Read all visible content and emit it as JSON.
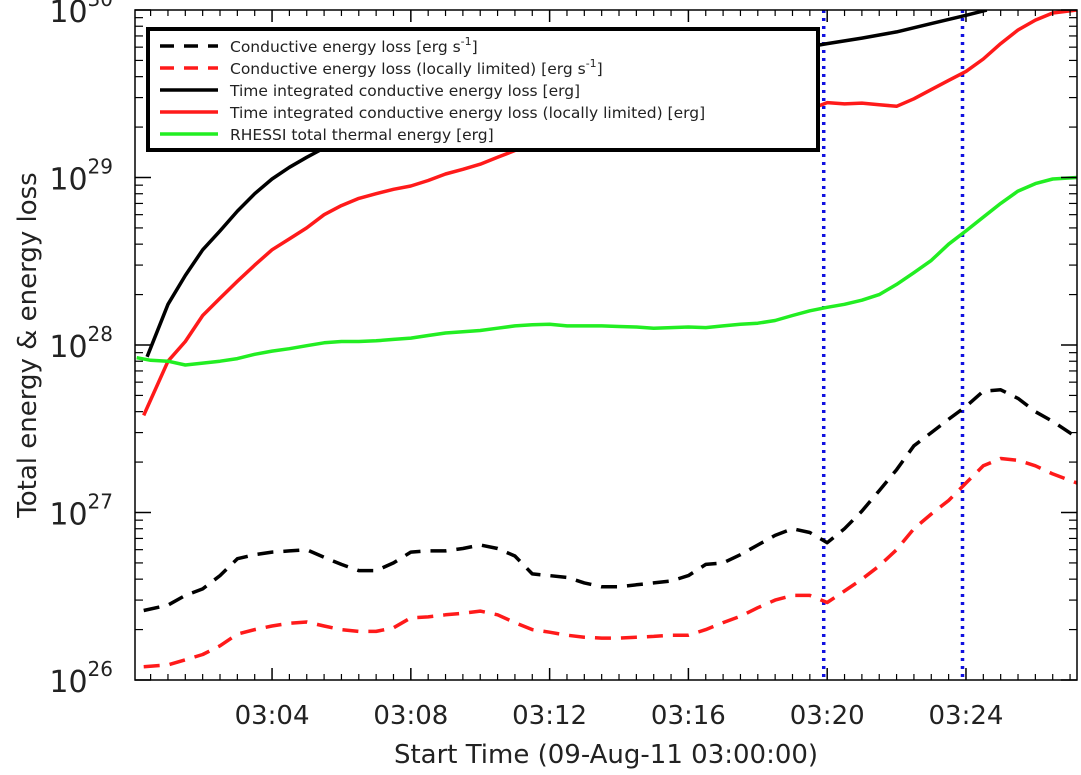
{
  "chart_data": {
    "type": "line",
    "xlabel": "Start Time (09-Aug-11 03:00:00)",
    "ylabel": "Total energy & energy loss",
    "yscale": "log",
    "xlim": [
      0.05,
      27.2
    ],
    "ylim": [
      1e+26,
      1e+30
    ],
    "x_ticks": [
      {
        "value": 4,
        "label": "03:04"
      },
      {
        "value": 8,
        "label": "03:08"
      },
      {
        "value": 12,
        "label": "03:12"
      },
      {
        "value": 16,
        "label": "03:16"
      },
      {
        "value": 20,
        "label": "03:20"
      },
      {
        "value": 24,
        "label": "03:24"
      }
    ],
    "y_ticks": [
      {
        "value": 1e+26,
        "base": "10",
        "exp": "26"
      },
      {
        "value": 1e+27,
        "base": "10",
        "exp": "27"
      },
      {
        "value": 1e+28,
        "base": "10",
        "exp": "28"
      },
      {
        "value": 1e+29,
        "base": "10",
        "exp": "29"
      },
      {
        "value": 1e+30,
        "base": "10",
        "exp": "30"
      }
    ],
    "legend_placement": "top-left",
    "vlines": [
      {
        "x": 19.9,
        "color": "#1010e0",
        "style": "dotted"
      },
      {
        "x": 23.9,
        "color": "#1010e0",
        "style": "dotted"
      }
    ],
    "series": [
      {
        "name": "Conductive energy loss [erg s",
        "name_sup": "-1",
        "name_suffix": "]",
        "color": "#000000",
        "style": "dashed",
        "x": [
          0.3,
          1.0,
          1.5,
          2.0,
          2.5,
          3.0,
          3.5,
          4.0,
          4.5,
          5.0,
          5.5,
          6.0,
          6.5,
          7.0,
          7.5,
          8.0,
          8.5,
          9.0,
          9.5,
          10.0,
          10.5,
          11.0,
          11.5,
          12.0,
          12.5,
          13.0,
          13.5,
          14.0,
          14.5,
          15.0,
          15.5,
          16.0,
          16.5,
          17.0,
          17.5,
          18.0,
          18.5,
          19.0,
          19.5,
          20.0,
          20.5,
          21.0,
          21.5,
          22.0,
          22.5,
          23.0,
          23.5,
          24.0,
          24.5,
          25.0,
          25.5,
          26.0,
          26.5,
          27.2
        ],
        "y": [
          2.6e+26,
          2.8e+26,
          3.2e+26,
          3.5e+26,
          4.2e+26,
          5.3e+26,
          5.6e+26,
          5.8e+26,
          5.9e+26,
          6e+26,
          5.4e+26,
          4.9e+26,
          4.5e+26,
          4.5e+26,
          5e+26,
          5.8e+26,
          5.9e+26,
          5.9e+26,
          6.1e+26,
          6.4e+26,
          6.1e+26,
          5.5e+26,
          4.3e+26,
          4.2e+26,
          4.1e+26,
          3.8e+26,
          3.6e+26,
          3.6e+26,
          3.7e+26,
          3.8e+26,
          3.9e+26,
          4.2e+26,
          4.9e+26,
          5e+26,
          5.6e+26,
          6.4e+26,
          7.3e+26,
          8e+26,
          7.6e+26,
          6.6e+26,
          8e+26,
          1.02e+27,
          1.35e+27,
          1.8e+27,
          2.5e+27,
          3e+27,
          3.6e+27,
          4.3e+27,
          5.3e+27,
          5.4e+27,
          4.8e+27,
          4e+27,
          3.5e+27,
          2.8e+27
        ]
      },
      {
        "name": "Conductive energy loss (locally limited) [erg s",
        "name_sup": "-1",
        "name_suffix": "]",
        "color": "#ff1a1a",
        "style": "dashed",
        "x": [
          0.3,
          1.0,
          1.5,
          2.0,
          2.5,
          3.0,
          3.5,
          4.0,
          4.5,
          5.0,
          5.5,
          6.0,
          6.5,
          7.0,
          7.5,
          8.0,
          8.5,
          9.0,
          9.5,
          10.0,
          10.5,
          11.0,
          11.5,
          12.0,
          12.5,
          13.0,
          13.5,
          14.0,
          14.5,
          15.0,
          15.5,
          16.0,
          16.5,
          17.0,
          17.5,
          18.0,
          18.5,
          19.0,
          19.5,
          20.0,
          20.5,
          21.0,
          21.5,
          22.0,
          22.5,
          23.0,
          23.5,
          24.0,
          24.5,
          25.0,
          25.5,
          26.0,
          26.5,
          27.2
        ],
        "y": [
          1.2e+26,
          1.23e+26,
          1.32e+26,
          1.42e+26,
          1.6e+26,
          1.88e+26,
          2e+26,
          2.1e+26,
          2.18e+26,
          2.22e+26,
          2.1e+26,
          2e+26,
          1.95e+26,
          1.95e+26,
          2.05e+26,
          2.35e+26,
          2.38e+26,
          2.45e+26,
          2.5e+26,
          2.58e+26,
          2.45e+26,
          2.2e+26,
          2e+26,
          1.93e+26,
          1.85e+26,
          1.8e+26,
          1.78e+26,
          1.78e+26,
          1.8e+26,
          1.82e+26,
          1.85e+26,
          1.85e+26,
          2e+26,
          2.2e+26,
          2.4e+26,
          2.7e+26,
          3e+26,
          3.2e+26,
          3.2e+26,
          2.9e+26,
          3.4e+26,
          4e+26,
          4.8e+26,
          6e+26,
          8e+26,
          9.8e+26,
          1.18e+27,
          1.5e+27,
          1.9e+27,
          2.1e+27,
          2.05e+27,
          1.9e+27,
          1.7e+27,
          1.5e+27
        ]
      },
      {
        "name": "Time integrated conductive energy loss [erg]",
        "color": "#000000",
        "style": "solid",
        "x": [
          0.4,
          1.0,
          1.5,
          2.0,
          2.5,
          3.0,
          3.5,
          4.0,
          4.5,
          5.0,
          5.5,
          6.0,
          6.5,
          7.0,
          8.0,
          9.0,
          10.0,
          11.0,
          12.0,
          13.0,
          14.0,
          15.0,
          16.0,
          17.0,
          18.0,
          19.0,
          20.0,
          21.0,
          22.0,
          23.0,
          24.0,
          24.6
        ],
        "y": [
          8.5e+27,
          1.75e+28,
          2.6e+28,
          3.7e+28,
          4.8e+28,
          6.3e+28,
          8e+28,
          9.8e+28,
          1.15e+29,
          1.32e+29,
          1.5e+29,
          1.62e+29,
          1.75e+29,
          1.88e+29,
          2.15e+29,
          2.55e+29,
          2.95e+29,
          3.3e+29,
          3.6e+29,
          3.9e+29,
          4.2e+29,
          4.5e+29,
          4.8e+29,
          5.1e+29,
          5.4e+29,
          5.8e+29,
          6.3e+29,
          6.8e+29,
          7.4e+29,
          8.3e+29,
          9.3e+29,
          1e+30
        ]
      },
      {
        "name": "Time integrated conductive energy loss (locally limited) [erg]",
        "color": "#ff1a1a",
        "style": "solid",
        "x": [
          0.3,
          1.0,
          1.5,
          2.0,
          2.5,
          3.0,
          3.5,
          4.0,
          4.5,
          5.0,
          5.5,
          6.0,
          6.5,
          7.0,
          7.5,
          8.0,
          8.5,
          9.0,
          9.5,
          10.0,
          10.5,
          11.0,
          11.5,
          12.0,
          12.5,
          13.0,
          13.5,
          14.0,
          14.5,
          15.0,
          15.5,
          16.0,
          16.5,
          17.0,
          17.5,
          18.0,
          18.5,
          19.0,
          19.5,
          20.0,
          20.5,
          21.0,
          21.5,
          22.0,
          22.5,
          23.0,
          23.5,
          24.0,
          24.5,
          25.0,
          25.5,
          26.0,
          26.5,
          27.2
        ],
        "y": [
          3.8e+27,
          8e+27,
          1.05e+28,
          1.5e+28,
          1.9e+28,
          2.4e+28,
          3e+28,
          3.7e+28,
          4.3e+28,
          5e+28,
          6e+28,
          6.8e+28,
          7.5e+28,
          8e+28,
          8.5e+28,
          8.9e+28,
          9.6e+28,
          1.05e+29,
          1.12e+29,
          1.2e+29,
          1.32e+29,
          1.45e+29,
          1.6e+29,
          1.72e+29,
          1.82e+29,
          1.9e+29,
          2e+29,
          2.03e+29,
          2.06e+29,
          2.08e+29,
          2.1e+29,
          2.15e+29,
          2.2e+29,
          2.12e+29,
          2.2e+29,
          2.25e+29,
          2.3e+29,
          2.35e+29,
          2.55e+29,
          2.8e+29,
          2.75e+29,
          2.78e+29,
          2.72e+29,
          2.66e+29,
          2.95e+29,
          3.35e+29,
          3.8e+29,
          4.3e+29,
          5.1e+29,
          6.3e+29,
          7.6e+29,
          8.7e+29,
          9.6e+29,
          1e+30
        ]
      },
      {
        "name": "RHESSI total thermal energy [erg]",
        "color": "#22ee22",
        "style": "solid",
        "x": [
          0.1,
          0.5,
          1.0,
          1.5,
          2.0,
          2.5,
          3.0,
          3.5,
          4.0,
          4.5,
          5.0,
          5.5,
          6.0,
          6.5,
          7.0,
          7.5,
          8.0,
          8.5,
          9.0,
          9.5,
          10.0,
          10.5,
          11.0,
          11.5,
          12.0,
          12.5,
          13.0,
          13.5,
          14.0,
          14.5,
          15.0,
          15.5,
          16.0,
          16.5,
          17.0,
          17.5,
          18.0,
          18.5,
          19.0,
          19.5,
          20.0,
          20.5,
          21.0,
          21.5,
          22.0,
          22.5,
          23.0,
          23.5,
          24.0,
          24.5,
          25.0,
          25.5,
          26.0,
          26.5,
          27.2
        ],
        "y": [
          8.4e+27,
          8.1e+27,
          8e+27,
          7.6e+27,
          7.8e+27,
          8e+27,
          8.3e+27,
          8.8e+27,
          9.2e+27,
          9.5e+27,
          9.9e+27,
          1.03e+28,
          1.05e+28,
          1.05e+28,
          1.06e+28,
          1.08e+28,
          1.1e+28,
          1.14e+28,
          1.18e+28,
          1.2e+28,
          1.22e+28,
          1.26e+28,
          1.3e+28,
          1.32e+28,
          1.33e+28,
          1.3e+28,
          1.3e+28,
          1.3e+28,
          1.29e+28,
          1.28e+28,
          1.26e+28,
          1.27e+28,
          1.28e+28,
          1.27e+28,
          1.3e+28,
          1.33e+28,
          1.35e+28,
          1.4e+28,
          1.5e+28,
          1.6e+28,
          1.68e+28,
          1.75e+28,
          1.85e+28,
          2e+28,
          2.3e+28,
          2.7e+28,
          3.2e+28,
          4e+28,
          4.8e+28,
          5.8e+28,
          7e+28,
          8.3e+28,
          9.2e+28,
          9.8e+28,
          1e+29
        ]
      }
    ]
  }
}
